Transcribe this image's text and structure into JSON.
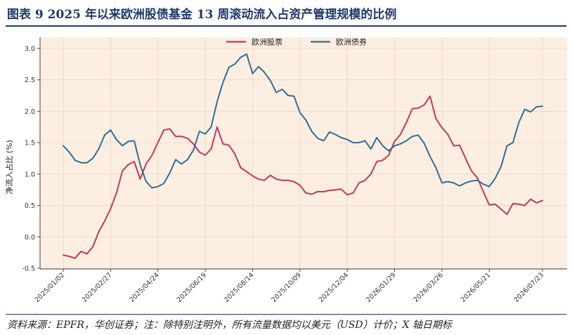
{
  "title": "图表 9    2025 年以来欧洲股债基金 13 周滚动流入占资产管理规模的比例",
  "footnote": "资料来源：EPFR，华创证券；注：除特别注明外，所有流量数据均以美元（USD）计价；X 轴日期标",
  "chart_data": {
    "type": "line",
    "ylabel": "净流入占比  (%)",
    "ylim": [
      -0.5,
      3.05
    ],
    "yticks": [
      "3.0",
      "2.5",
      "2.0",
      "1.5",
      "1.0",
      "0.5",
      "0.0",
      "-0.5"
    ],
    "ytick_values": [
      3.0,
      2.5,
      2.0,
      1.5,
      1.0,
      0.5,
      0.0,
      -0.5
    ],
    "xlabels": [
      "2025/01/02",
      "2025/02/27",
      "2025/04/24",
      "2025/06/19",
      "2025/08/14",
      "2025/10/09",
      "2025/12/04",
      "2026/01/29",
      "2026/03/26",
      "2026/05/21",
      "2026/07/23"
    ],
    "x_count": 82,
    "xlabel_index": [
      0,
      8,
      16,
      24,
      32,
      40,
      48,
      56,
      64,
      72,
      81
    ],
    "grid": true,
    "legend_position": "top-center",
    "series": [
      {
        "name": "欧洲股票",
        "color": "#c0395a",
        "values": [
          -0.29,
          -0.31,
          -0.34,
          -0.23,
          -0.27,
          -0.16,
          0.08,
          0.25,
          0.45,
          0.7,
          1.05,
          1.15,
          1.2,
          0.92,
          1.16,
          1.3,
          1.5,
          1.7,
          1.72,
          1.6,
          1.6,
          1.57,
          1.48,
          1.35,
          1.3,
          1.4,
          1.75,
          1.48,
          1.46,
          1.32,
          1.1,
          1.04,
          0.97,
          0.92,
          0.9,
          0.98,
          0.92,
          0.9,
          0.9,
          0.88,
          0.82,
          0.7,
          0.68,
          0.72,
          0.72,
          0.74,
          0.75,
          0.76,
          0.67,
          0.7,
          0.86,
          0.9,
          1.0,
          1.2,
          1.22,
          1.3,
          1.52,
          1.63,
          1.82,
          2.04,
          2.05,
          2.1,
          2.24,
          1.88,
          1.74,
          1.63,
          1.45,
          1.46,
          1.25,
          1.05,
          0.94,
          0.72,
          0.51,
          0.52,
          0.44,
          0.36,
          0.53,
          0.52,
          0.5,
          0.6,
          0.54,
          0.58
        ]
      },
      {
        "name": "欧洲债券",
        "color": "#2f6f93",
        "values": [
          1.45,
          1.35,
          1.22,
          1.18,
          1.18,
          1.25,
          1.4,
          1.62,
          1.7,
          1.55,
          1.45,
          1.52,
          1.53,
          1.15,
          0.88,
          0.78,
          0.8,
          0.85,
          1.02,
          1.23,
          1.16,
          1.23,
          1.38,
          1.68,
          1.64,
          1.75,
          2.15,
          2.46,
          2.7,
          2.75,
          2.86,
          2.91,
          2.6,
          2.71,
          2.62,
          2.49,
          2.3,
          2.35,
          2.25,
          2.24,
          1.98,
          1.86,
          1.68,
          1.57,
          1.53,
          1.67,
          1.63,
          1.58,
          1.55,
          1.5,
          1.5,
          1.53,
          1.4,
          1.58,
          1.45,
          1.37,
          1.45,
          1.48,
          1.53,
          1.6,
          1.62,
          1.49,
          1.28,
          1.1,
          0.86,
          0.88,
          0.86,
          0.81,
          0.86,
          0.89,
          0.9,
          0.84,
          0.8,
          0.93,
          1.12,
          1.45,
          1.5,
          1.82,
          2.03,
          1.99,
          2.07,
          2.08
        ]
      }
    ]
  }
}
